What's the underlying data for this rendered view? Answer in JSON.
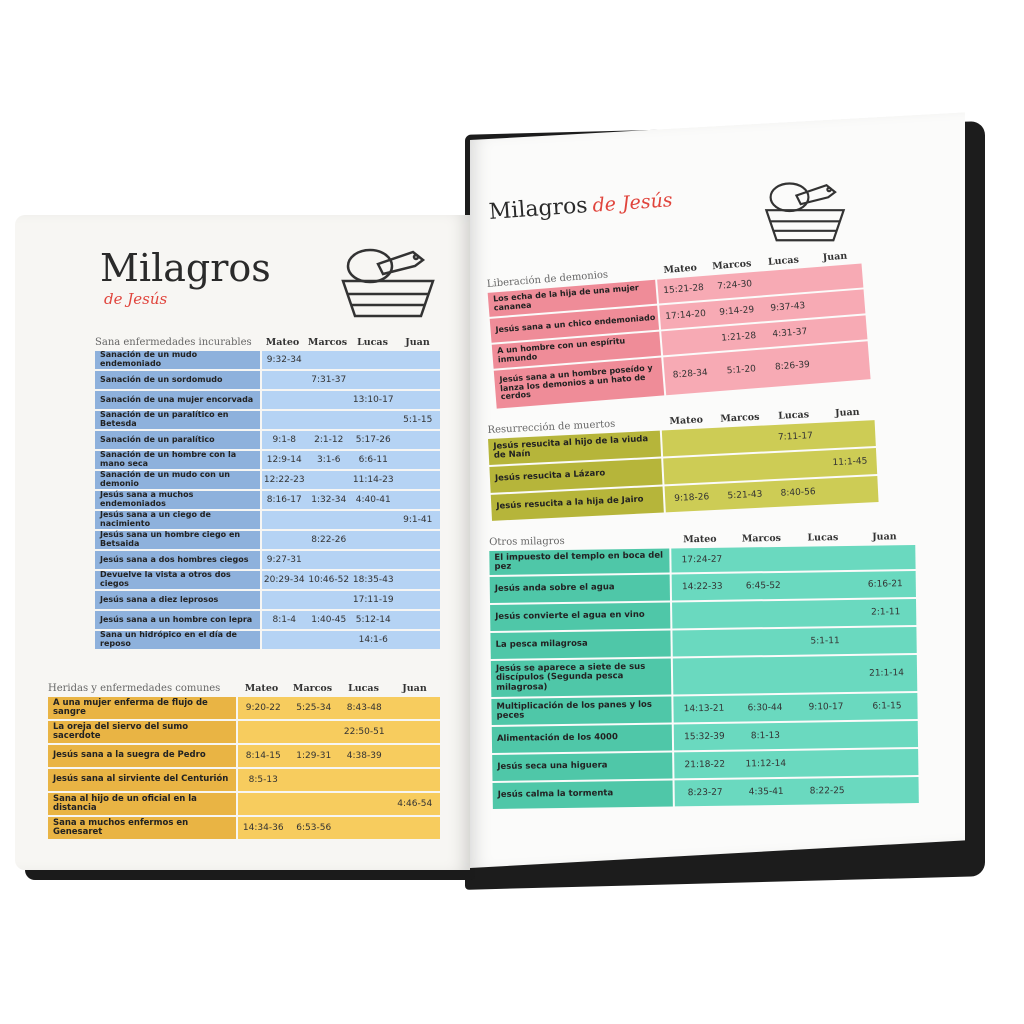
{
  "columns": [
    "Mateo",
    "Marcos",
    "Lucas",
    "Juan"
  ],
  "left_page": {
    "title": "Milagros",
    "subtitle": "de Jesús",
    "sections": [
      {
        "heading": "Sana enfermedades incurables",
        "label_color": "#8eb1dc",
        "cell_color": "#b5d3f4",
        "rows": [
          [
            "Sanación de un mudo endemoniado",
            "9:32-34",
            "",
            "",
            ""
          ],
          [
            "Sanación de un sordomudo",
            "",
            "7:31-37",
            "",
            ""
          ],
          [
            "Sanación de una mujer encorvada",
            "",
            "",
            "13:10-17",
            ""
          ],
          [
            "Sanación de un paralítico en Betesda",
            "",
            "",
            "",
            "5:1-15"
          ],
          [
            "Sanación de un paralítico",
            "9:1-8",
            "2:1-12",
            "5:17-26",
            ""
          ],
          [
            "Sanación de un hombre con la mano seca",
            "12:9-14",
            "3:1-6",
            "6:6-11",
            ""
          ],
          [
            "Sanación de un mudo con un demonio",
            "12:22-23",
            "",
            "11:14-23",
            ""
          ],
          [
            "Jesús sana a muchos endemoniados",
            "8:16-17",
            "1:32-34",
            "4:40-41",
            ""
          ],
          [
            "Jesús sana a un ciego de nacimiento",
            "",
            "",
            "",
            "9:1-41"
          ],
          [
            "Jesús sana un hombre ciego en Betsaida",
            "",
            "8:22-26",
            "",
            ""
          ],
          [
            "Jesús sana a dos hombres ciegos",
            "9:27-31",
            "",
            "",
            ""
          ],
          [
            "Devuelve la vista a otros dos ciegos",
            "20:29-34",
            "10:46-52",
            "18:35-43",
            ""
          ],
          [
            "Jesús sana a diez leprosos",
            "",
            "",
            "17:11-19",
            ""
          ],
          [
            "Jesús sana a un hombre con lepra",
            "8:1-4",
            "1:40-45",
            "5:12-14",
            ""
          ],
          [
            "Sana un hidrópico en el día de reposo",
            "",
            "",
            "14:1-6",
            ""
          ]
        ]
      },
      {
        "heading": "Heridas y enfermedades comunes",
        "label_color": "#e9b444",
        "cell_color": "#f7cc5e",
        "rows": [
          [
            "A una mujer enferma de flujo de sangre",
            "9:20-22",
            "5:25-34",
            "8:43-48",
            ""
          ],
          [
            "La oreja del siervo del sumo sacerdote",
            "",
            "",
            "22:50-51",
            ""
          ],
          [
            "Jesús sana a la suegra de Pedro",
            "8:14-15",
            "1:29-31",
            "4:38-39",
            ""
          ],
          [
            "Jesús sana al sirviente del Centurión",
            "8:5-13",
            "",
            "",
            ""
          ],
          [
            "Sana al hijo de un oficial en la distancia",
            "",
            "",
            "",
            "4:46-54"
          ],
          [
            "Sana a muchos enfermos en Genesaret",
            "14:34-36",
            "6:53-56",
            "",
            ""
          ]
        ]
      }
    ]
  },
  "right_page": {
    "title": "Milagros",
    "subtitle": "de Jesús",
    "sections": [
      {
        "heading": "Liberación de demonios",
        "label_color": "#ef8c98",
        "cell_color": "#f7aab4",
        "rows": [
          [
            "Los echa de la hija de una mujer cananea",
            "15:21-28",
            "7:24-30",
            "",
            ""
          ],
          [
            "Jesús sana a un chico endemoniado",
            "17:14-20",
            "9:14-29",
            "9:37-43",
            ""
          ],
          [
            "A un hombre con un espíritu inmundo",
            "",
            "1:21-28",
            "4:31-37",
            ""
          ],
          [
            "Jesús sana a un hombre poseído y lanza los demonios a un hato de cerdos",
            "8:28-34",
            "5:1-20",
            "8:26-39",
            ""
          ]
        ]
      },
      {
        "heading": "Resurrección de muertos",
        "label_color": "#b6b53a",
        "cell_color": "#cdcc55",
        "rows": [
          [
            "Jesús resucita al hijo de la viuda de Naín",
            "",
            "",
            "7:11-17",
            ""
          ],
          [
            "Jesús resucita a Lázaro",
            "",
            "",
            "",
            "11:1-45"
          ],
          [
            "Jesús resucita a la hija de Jairo",
            "9:18-26",
            "5:21-43",
            "8:40-56",
            ""
          ]
        ]
      },
      {
        "heading": "Otros milagros",
        "label_color": "#4fc7a8",
        "cell_color": "#6ad9bf",
        "rows": [
          [
            "El impuesto del templo en boca del pez",
            "17:24-27",
            "",
            "",
            ""
          ],
          [
            "Jesús anda sobre el agua",
            "14:22-33",
            "6:45-52",
            "",
            "6:16-21"
          ],
          [
            "Jesús convierte el agua en vino",
            "",
            "",
            "",
            "2:1-11"
          ],
          [
            "La pesca milagrosa",
            "",
            "",
            "5:1-11",
            ""
          ],
          [
            "Jesús se aparece a siete de sus discípulos (Segunda pesca milagrosa)",
            "",
            "",
            "",
            "21:1-14"
          ],
          [
            "Multiplicación de los panes y los peces",
            "14:13-21",
            "6:30-44",
            "9:10-17",
            "6:1-15"
          ],
          [
            "Alimentación de los 4000",
            "15:32-39",
            "8:1-13",
            "",
            ""
          ],
          [
            "Jesús seca una higuera",
            "21:18-22",
            "11:12-14",
            "",
            ""
          ],
          [
            "Jesús calma la tormenta",
            "8:23-27",
            "4:35-41",
            "8:22-25",
            ""
          ]
        ]
      }
    ]
  }
}
